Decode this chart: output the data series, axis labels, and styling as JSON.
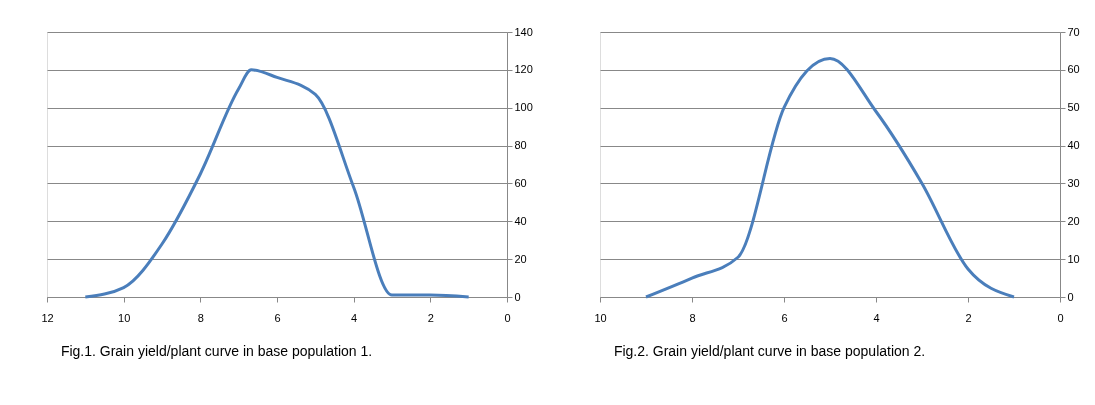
{
  "chart_data": [
    {
      "type": "line",
      "title": "Fig.1. Grain yield/plant curve in base population 1.",
      "x": [
        11,
        10,
        9,
        8,
        7,
        6.67,
        6,
        5,
        4,
        3,
        2,
        1
      ],
      "series": [
        {
          "color": "#4a7ebb",
          "values": [
            0,
            5,
            28,
            65,
            110,
            120,
            116,
            107,
            58,
            1,
            1,
            0
          ]
        }
      ],
      "xlim": [
        12,
        0
      ],
      "xticks": [
        12,
        10,
        8,
        6,
        4,
        2,
        0
      ],
      "ylim": [
        0,
        140
      ],
      "yticks": [
        0,
        20,
        40,
        60,
        80,
        100,
        120,
        140
      ],
      "grid": "y",
      "marker": "none",
      "line_style": "solid"
    },
    {
      "type": "line",
      "title": "Fig.2. Grain yield/plant curve in base population 2.",
      "x": [
        9,
        8,
        7,
        6,
        5,
        4,
        3,
        2,
        1
      ],
      "series": [
        {
          "color": "#4a7ebb",
          "values": [
            0,
            5,
            10.5,
            50,
            63,
            49,
            30,
            7.4,
            0
          ]
        }
      ],
      "xlim": [
        10,
        0
      ],
      "xticks": [
        10,
        8,
        6,
        4,
        2,
        0
      ],
      "ylim": [
        0,
        70
      ],
      "yticks": [
        0,
        10,
        20,
        30,
        40,
        50,
        60,
        70
      ],
      "grid": "y",
      "marker": "none",
      "line_style": "solid"
    }
  ]
}
